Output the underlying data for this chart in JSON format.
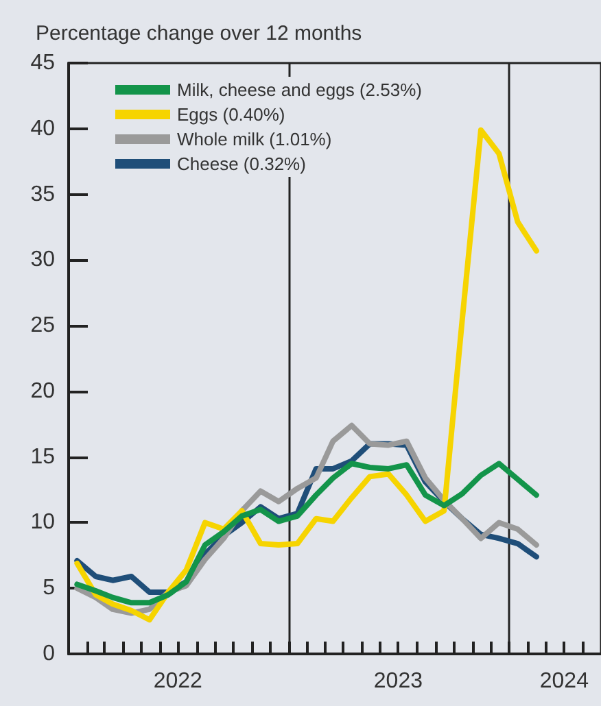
{
  "chart_data": {
    "type": "line",
    "ylabel": "Percentage change over 12 months",
    "x": [
      "2022-01-15",
      "2022-02-15",
      "2022-03-15",
      "2022-04-15",
      "2022-05-15",
      "2022-06-15",
      "2022-07-15",
      "2022-08-15",
      "2022-09-15",
      "2022-10-15",
      "2022-11-15",
      "2022-12-15",
      "2023-01-15",
      "2023-02-15",
      "2023-03-15",
      "2023-04-15",
      "2023-05-15",
      "2023-06-15",
      "2023-07-15",
      "2023-08-15",
      "2023-09-15",
      "2023-10-15",
      "2023-11-15",
      "2023-12-15",
      "2024-01-15",
      "2024-02-15"
    ],
    "series": [
      {
        "name": "Milk, cheese and eggs (2.53%)",
        "color": "#13944a",
        "values": [
          5.3,
          4.8,
          4.3,
          3.9,
          3.9,
          4.5,
          5.5,
          8.3,
          9.3,
          10.5,
          11.0,
          10.1,
          10.5,
          12.1,
          13.4,
          14.5,
          14.2,
          14.1,
          14.4,
          12.1,
          11.3,
          12.2,
          13.6,
          14.5,
          13.3,
          12.1
        ]
      },
      {
        "name": "Eggs (0.40%)",
        "color": "#f6d400",
        "values": [
          6.9,
          4.5,
          3.8,
          3.3,
          2.6,
          4.7,
          6.4,
          10.0,
          9.5,
          10.9,
          8.4,
          8.3,
          8.4,
          10.3,
          10.1,
          11.9,
          13.5,
          13.7,
          12.1,
          10.1,
          10.9,
          25.4,
          39.9,
          38.1,
          32.9,
          30.7
        ]
      },
      {
        "name": "Whole milk (1.01%)",
        "color": "#9a9a9a",
        "values": [
          5.0,
          4.3,
          3.4,
          3.1,
          3.4,
          4.7,
          5.2,
          7.2,
          8.8,
          10.9,
          12.4,
          11.6,
          12.6,
          13.4,
          16.2,
          17.4,
          16.0,
          15.9,
          16.2,
          13.4,
          11.7,
          10.3,
          8.8,
          10.0,
          9.5,
          8.3
        ]
      },
      {
        "name": "Cheese (0.32%)",
        "color": "#1f4e79",
        "values": [
          7.1,
          5.9,
          5.6,
          5.9,
          4.7,
          4.7,
          5.5,
          7.6,
          9.0,
          10.0,
          11.2,
          10.3,
          10.7,
          14.1,
          14.1,
          14.7,
          16.0,
          16.0,
          15.9,
          13.1,
          11.6,
          10.3,
          9.1,
          8.8,
          8.4,
          7.4
        ]
      }
    ],
    "xlim": [
      "2022-01-01",
      "2024-06-01"
    ],
    "xticks": [
      {
        "value": "2022-02-01",
        "label": null
      },
      {
        "value": "2022-03-01",
        "label": null
      },
      {
        "value": "2022-04-01",
        "label": null
      },
      {
        "value": "2022-05-01",
        "label": null
      },
      {
        "value": "2022-06-01",
        "label": null
      },
      {
        "value": "2022-07-01",
        "label": "2022"
      },
      {
        "value": "2022-08-01",
        "label": null
      },
      {
        "value": "2022-09-01",
        "label": null
      },
      {
        "value": "2022-10-01",
        "label": null
      },
      {
        "value": "2022-11-01",
        "label": null
      },
      {
        "value": "2022-12-01",
        "label": null
      },
      {
        "value": "2023-01-01",
        "label": null
      },
      {
        "value": "2023-02-01",
        "label": null
      },
      {
        "value": "2023-03-01",
        "label": null
      },
      {
        "value": "2023-04-01",
        "label": null
      },
      {
        "value": "2023-05-01",
        "label": null
      },
      {
        "value": "2023-06-01",
        "label": null
      },
      {
        "value": "2023-07-01",
        "label": "2023"
      },
      {
        "value": "2023-08-01",
        "label": null
      },
      {
        "value": "2023-09-01",
        "label": null
      },
      {
        "value": "2023-10-01",
        "label": null
      },
      {
        "value": "2023-11-01",
        "label": null
      },
      {
        "value": "2023-12-01",
        "label": null
      },
      {
        "value": "2024-01-01",
        "label": null
      },
      {
        "value": "2024-02-01",
        "label": null
      },
      {
        "value": "2024-03-01",
        "label": null
      },
      {
        "value": "2024-04-01",
        "label": "2024"
      },
      {
        "value": "2024-05-01",
        "label": null
      }
    ],
    "ylim": [
      0,
      45
    ],
    "yticks": [
      0,
      5,
      10,
      15,
      20,
      25,
      30,
      35,
      40,
      45
    ],
    "ref_lines": [
      {
        "axis": "x",
        "value": "2023-01-01",
        "color": "#222222"
      },
      {
        "axis": "x",
        "value": "2024-01-01",
        "color": "#222222"
      }
    ],
    "grid": false,
    "legend": "top left",
    "marker": "none",
    "line_style": "solid"
  }
}
